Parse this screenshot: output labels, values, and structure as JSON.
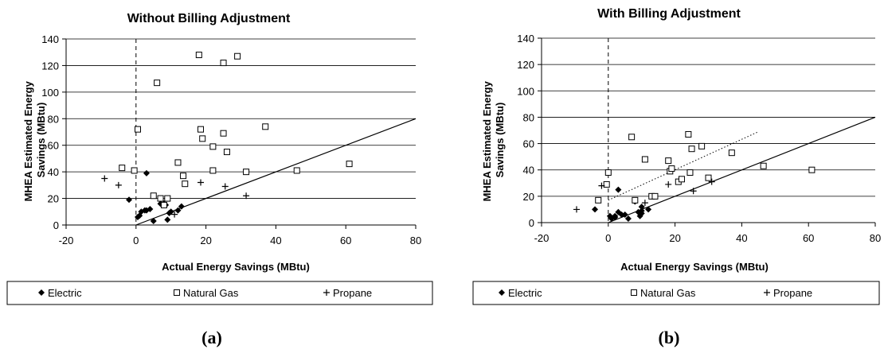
{
  "chart_data": [
    {
      "type": "scatter",
      "title": "Without Billing Adjustment",
      "xlabel": "Actual Energy Savings (MBtu)",
      "ylabel": "MHEA Estimated Energy Savings (MBtu)",
      "xlim": [
        -20,
        80
      ],
      "ylim": [
        0,
        140
      ],
      "xticks": [
        "-20",
        "0",
        "20",
        "40",
        "60",
        "80"
      ],
      "yticks": [
        "0",
        "20",
        "40",
        "60",
        "80",
        "100",
        "120",
        "140"
      ],
      "grid": "horizontal",
      "legend_position": "bottom",
      "panel_label": "(a)",
      "series": [
        {
          "name": "Electric",
          "marker": "diamond",
          "points": [
            [
              -2,
              19
            ],
            [
              3,
              39
            ],
            [
              0.5,
              6
            ],
            [
              1,
              7
            ],
            [
              1.5,
              10
            ],
            [
              2.5,
              11
            ],
            [
              3,
              11
            ],
            [
              4,
              12
            ],
            [
              5,
              3
            ],
            [
              7,
              16
            ],
            [
              8,
              16
            ],
            [
              8.5,
              15
            ],
            [
              9,
              4
            ],
            [
              9.5,
              9
            ],
            [
              10,
              10
            ],
            [
              12,
              11
            ],
            [
              13,
              14
            ]
          ]
        },
        {
          "name": "Natural Gas",
          "marker": "square",
          "points": [
            [
              -4,
              43
            ],
            [
              -0.5,
              41
            ],
            [
              0.5,
              72
            ],
            [
              5,
              22
            ],
            [
              6,
              107
            ],
            [
              7,
              20
            ],
            [
              9,
              20
            ],
            [
              8,
              15
            ],
            [
              12,
              47
            ],
            [
              13.5,
              37
            ],
            [
              14,
              31
            ],
            [
              18,
              128
            ],
            [
              18.5,
              72
            ],
            [
              19,
              65
            ],
            [
              22,
              59
            ],
            [
              22,
              41
            ],
            [
              25,
              122
            ],
            [
              25,
              69
            ],
            [
              26,
              55
            ],
            [
              29,
              127
            ],
            [
              31.5,
              40
            ],
            [
              37,
              74
            ],
            [
              46,
              41
            ],
            [
              61,
              46
            ]
          ]
        },
        {
          "name": "Propane",
          "marker": "plus",
          "points": [
            [
              -9,
              35
            ],
            [
              -5,
              30
            ],
            [
              11,
              8
            ],
            [
              18.5,
              32
            ],
            [
              25.5,
              29
            ],
            [
              31.5,
              22
            ]
          ]
        }
      ],
      "reference_line": [
        [
          0,
          0
        ],
        [
          80,
          80
        ]
      ]
    },
    {
      "type": "scatter",
      "title": "With Billing Adjustment",
      "xlabel": "Actual Energy Savings (MBtu)",
      "ylabel": "MHEA Estimated Energy Savings (MBtu)",
      "xlim": [
        -20,
        80
      ],
      "ylim": [
        0,
        140
      ],
      "xticks": [
        "-20",
        "0",
        "20",
        "40",
        "60",
        "80"
      ],
      "yticks": [
        "0",
        "20",
        "40",
        "60",
        "80",
        "100",
        "120",
        "140"
      ],
      "grid": "horizontal",
      "legend_position": "bottom",
      "panel_label": "(b)",
      "series": [
        {
          "name": "Electric",
          "marker": "diamond",
          "points": [
            [
              -4,
              10
            ],
            [
              0.5,
              5
            ],
            [
              1,
              3
            ],
            [
              2,
              5
            ],
            [
              2,
              4
            ],
            [
              3,
              25
            ],
            [
              3,
              8
            ],
            [
              4,
              6
            ],
            [
              5,
              6
            ],
            [
              6,
              3
            ],
            [
              8,
              16
            ],
            [
              9,
              8
            ],
            [
              9.5,
              5
            ],
            [
              10,
              7
            ],
            [
              10,
              9
            ],
            [
              10,
              12
            ],
            [
              12,
              10
            ],
            [
              13,
              20
            ]
          ]
        },
        {
          "name": "Natural Gas",
          "marker": "square",
          "points": [
            [
              -3,
              17
            ],
            [
              -0.5,
              29
            ],
            [
              0,
              38
            ],
            [
              7,
              65
            ],
            [
              8,
              17
            ],
            [
              11,
              48
            ],
            [
              13,
              20
            ],
            [
              14,
              20
            ],
            [
              18,
              47
            ],
            [
              18.5,
              39
            ],
            [
              19,
              41
            ],
            [
              21,
              31
            ],
            [
              22,
              33
            ],
            [
              24,
              67
            ],
            [
              24.5,
              38
            ],
            [
              25,
              56
            ],
            [
              28,
              58
            ],
            [
              30,
              34
            ],
            [
              37,
              53
            ],
            [
              46.5,
              43
            ],
            [
              61,
              40
            ]
          ]
        },
        {
          "name": "Propane",
          "marker": "plus",
          "points": [
            [
              -9.5,
              10
            ],
            [
              -2,
              28
            ],
            [
              11,
              15
            ],
            [
              18,
              29
            ],
            [
              25.5,
              24
            ],
            [
              31,
              31
            ]
          ]
        }
      ],
      "reference_line": [
        [
          0,
          0
        ],
        [
          80,
          80
        ]
      ],
      "trend_line": [
        [
          0,
          17
        ],
        [
          45,
          69
        ]
      ]
    }
  ]
}
